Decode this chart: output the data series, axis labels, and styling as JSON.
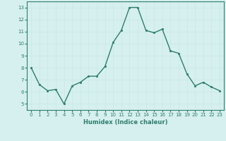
{
  "x": [
    0,
    1,
    2,
    3,
    4,
    5,
    6,
    7,
    8,
    9,
    10,
    11,
    12,
    13,
    14,
    15,
    16,
    17,
    18,
    19,
    20,
    21,
    22,
    23
  ],
  "y": [
    8.0,
    6.6,
    6.1,
    6.2,
    5.0,
    6.5,
    6.8,
    7.3,
    7.3,
    8.1,
    10.1,
    11.1,
    13.0,
    13.0,
    11.1,
    10.9,
    11.2,
    9.4,
    9.2,
    7.5,
    6.5,
    6.8,
    6.4,
    6.1
  ],
  "xlabel": "Humidex (Indice chaleur)",
  "ylim": [
    4.5,
    13.5
  ],
  "xlim": [
    -0.5,
    23.5
  ],
  "yticks": [
    5,
    6,
    7,
    8,
    9,
    10,
    11,
    12,
    13
  ],
  "xticks": [
    0,
    1,
    2,
    3,
    4,
    5,
    6,
    7,
    8,
    9,
    10,
    11,
    12,
    13,
    14,
    15,
    16,
    17,
    18,
    19,
    20,
    21,
    22,
    23
  ],
  "line_color": "#2e7d6e",
  "marker_color": "#2e7d6e",
  "bg_color": "#d6f0ef",
  "grid_color": "#c8e8e4",
  "axis_color": "#2e7d6e",
  "tick_color": "#2e7d6e",
  "label_color": "#2e7d6e",
  "tick_fontsize": 5.0,
  "xlabel_fontsize": 6.0
}
